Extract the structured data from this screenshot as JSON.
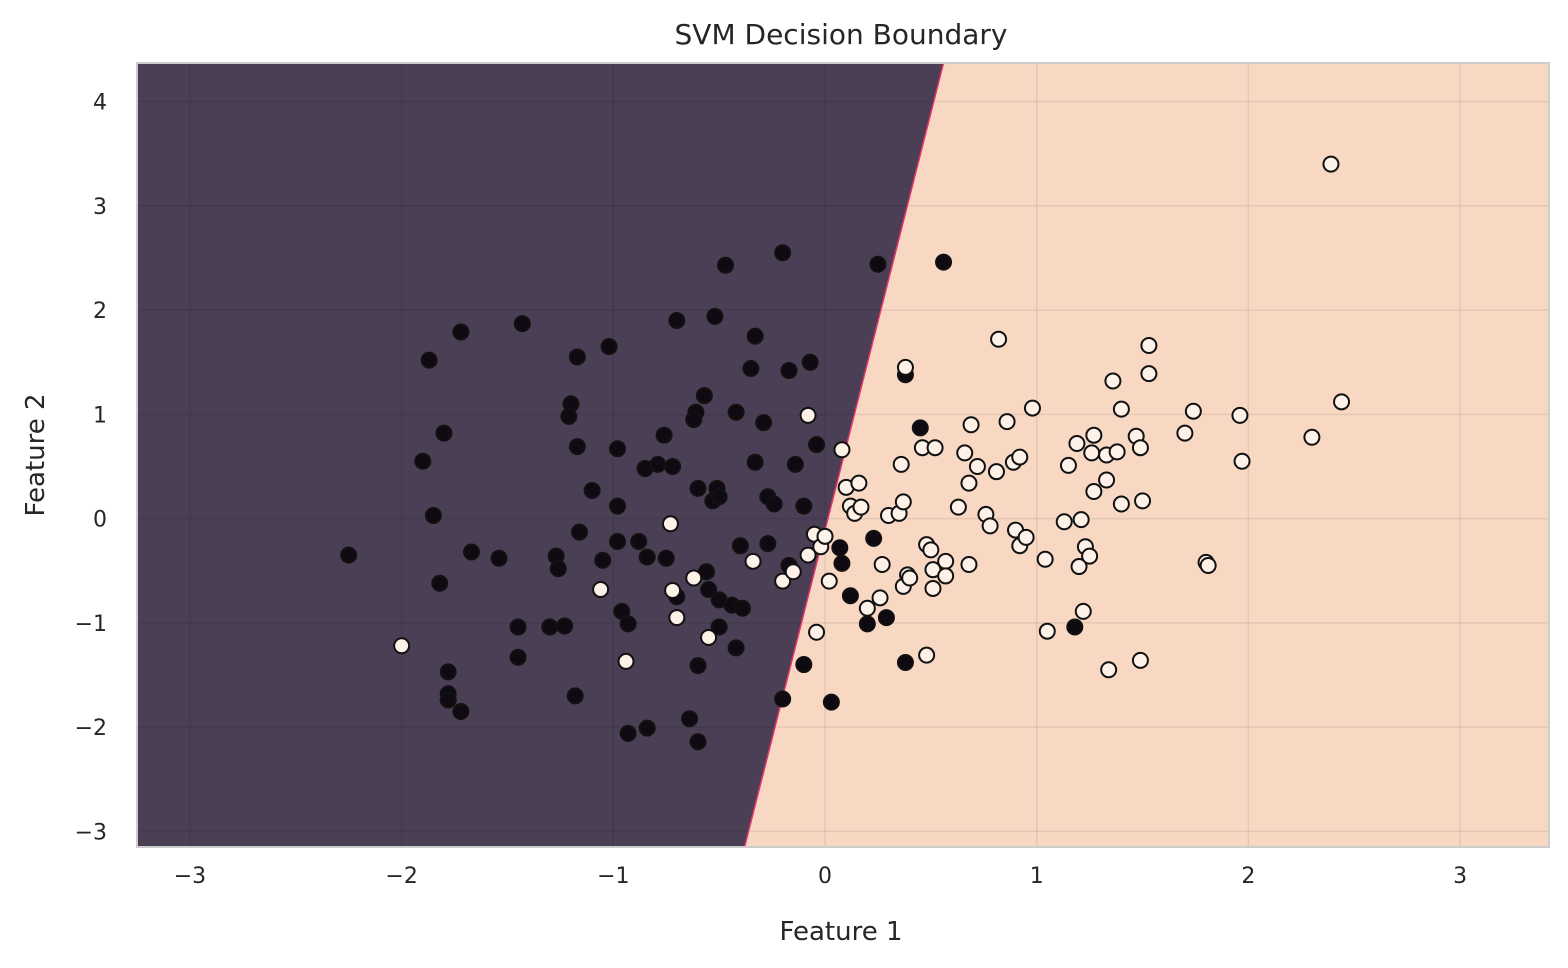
{
  "chart_data": {
    "type": "scatter",
    "title": "SVM Decision Boundary",
    "xlabel": "Feature 1",
    "ylabel": "Feature 2",
    "xlim": [
      -3.25,
      3.42
    ],
    "ylim": [
      -3.15,
      4.37
    ],
    "xticks": [
      -3,
      -2,
      -1,
      0,
      1,
      2,
      3
    ],
    "yticks": [
      -3,
      -2,
      -1,
      0,
      1,
      2,
      3,
      4
    ],
    "xtick_labels": [
      "−3",
      "−2",
      "−1",
      "0",
      "1",
      "2",
      "3"
    ],
    "ytick_labels": [
      "−3",
      "−2",
      "−1",
      "0",
      "1",
      "2",
      "3",
      "4"
    ],
    "grid": true,
    "boundary": {
      "x_at_bottom": -0.38,
      "x_at_top": 0.56
    },
    "region_colors": {
      "class_0": "#4a3f55",
      "class_1": "#f8d8c3",
      "boundary_line": "#e8336a"
    },
    "point_colors": {
      "class_0": "#0f0a12",
      "class_1": "#fdf1e8",
      "edge": "#111111"
    },
    "series": [
      {
        "class": 0,
        "points": [
          [
            -2.25,
            -0.35
          ],
          [
            -1.87,
            1.52
          ],
          [
            -1.8,
            0.82
          ],
          [
            -1.72,
            1.79
          ],
          [
            -1.9,
            0.55
          ],
          [
            -1.85,
            0.03
          ],
          [
            -1.82,
            -0.62
          ],
          [
            -1.67,
            -0.32
          ],
          [
            -1.78,
            -1.47
          ],
          [
            -1.78,
            -1.68
          ],
          [
            -1.78,
            -1.74
          ],
          [
            -1.72,
            -1.85
          ],
          [
            -1.54,
            -0.38
          ],
          [
            -1.43,
            1.87
          ],
          [
            -1.45,
            -1.04
          ],
          [
            -1.45,
            -1.33
          ],
          [
            -1.3,
            -1.04
          ],
          [
            -1.27,
            -0.36
          ],
          [
            -1.26,
            -0.48
          ],
          [
            -1.23,
            -1.03
          ],
          [
            -1.2,
            1.1
          ],
          [
            -1.21,
            0.98
          ],
          [
            -1.17,
            1.55
          ],
          [
            -1.17,
            0.69
          ],
          [
            -1.16,
            -0.13
          ],
          [
            -1.18,
            -1.7
          ],
          [
            -1.1,
            0.27
          ],
          [
            -1.05,
            -0.4
          ],
          [
            -1.02,
            1.65
          ],
          [
            -0.98,
            0.67
          ],
          [
            -0.98,
            0.12
          ],
          [
            -0.98,
            -0.22
          ],
          [
            -0.96,
            -0.89
          ],
          [
            -0.93,
            -1.01
          ],
          [
            -0.93,
            -2.06
          ],
          [
            -0.88,
            -0.22
          ],
          [
            -0.85,
            0.48
          ],
          [
            -0.84,
            -0.37
          ],
          [
            -0.84,
            -2.01
          ],
          [
            -0.79,
            0.52
          ],
          [
            -0.76,
            0.8
          ],
          [
            -0.75,
            -0.38
          ],
          [
            -0.72,
            0.5
          ],
          [
            -0.7,
            1.9
          ],
          [
            -0.7,
            -0.75
          ],
          [
            -0.64,
            -1.92
          ],
          [
            -0.61,
            1.02
          ],
          [
            -0.62,
            0.95
          ],
          [
            -0.6,
            0.29
          ],
          [
            -0.6,
            -1.41
          ],
          [
            -0.6,
            -2.14
          ],
          [
            -0.57,
            1.18
          ],
          [
            -0.56,
            -0.51
          ],
          [
            -0.55,
            -0.68
          ],
          [
            -0.53,
            0.17
          ],
          [
            -0.52,
            1.94
          ],
          [
            -0.51,
            0.29
          ],
          [
            -0.5,
            0.21
          ],
          [
            -0.5,
            -0.78
          ],
          [
            -0.5,
            -1.04
          ],
          [
            -0.47,
            2.43
          ],
          [
            -0.44,
            -0.83
          ],
          [
            -0.42,
            1.02
          ],
          [
            -0.42,
            -1.24
          ],
          [
            -0.4,
            -0.26
          ],
          [
            -0.39,
            -0.86
          ],
          [
            -0.35,
            1.44
          ],
          [
            -0.33,
            1.75
          ],
          [
            -0.33,
            0.54
          ],
          [
            -0.29,
            0.92
          ],
          [
            -0.27,
            0.21
          ],
          [
            -0.27,
            -0.24
          ],
          [
            -0.24,
            0.14
          ],
          [
            -0.2,
            2.55
          ],
          [
            -0.2,
            -1.73
          ],
          [
            -0.17,
            1.42
          ],
          [
            -0.17,
            -0.45
          ],
          [
            -0.14,
            0.52
          ],
          [
            -0.1,
            0.12
          ],
          [
            -0.07,
            1.5
          ],
          [
            -0.04,
            0.71
          ],
          [
            0.07,
            -0.28
          ],
          [
            0.08,
            -0.43
          ],
          [
            0.12,
            -0.74
          ],
          [
            0.2,
            -1.01
          ],
          [
            0.23,
            -0.19
          ],
          [
            0.25,
            2.44
          ],
          [
            0.29,
            -0.95
          ],
          [
            0.38,
            1.38
          ],
          [
            0.38,
            -1.38
          ],
          [
            0.45,
            0.87
          ],
          [
            0.56,
            2.46
          ],
          [
            0.03,
            -1.76
          ],
          [
            -0.1,
            -1.4
          ],
          [
            1.18,
            -1.04
          ]
        ]
      },
      {
        "class": 1,
        "points": [
          [
            -2.0,
            -1.22
          ],
          [
            -1.06,
            -0.68
          ],
          [
            -0.94,
            -1.37
          ],
          [
            -0.73,
            -0.05
          ],
          [
            -0.72,
            -0.69
          ],
          [
            -0.7,
            -0.95
          ],
          [
            -0.62,
            -0.57
          ],
          [
            -0.55,
            -1.14
          ],
          [
            -0.34,
            -0.41
          ],
          [
            -0.2,
            -0.6
          ],
          [
            -0.15,
            -0.51
          ],
          [
            -0.08,
            0.99
          ],
          [
            -0.08,
            -0.35
          ],
          [
            -0.05,
            -0.15
          ],
          [
            -0.04,
            -1.09
          ],
          [
            -0.02,
            -0.27
          ],
          [
            0.0,
            -0.17
          ],
          [
            0.02,
            -0.6
          ],
          [
            0.08,
            0.66
          ],
          [
            0.1,
            0.3
          ],
          [
            0.12,
            0.12
          ],
          [
            0.14,
            0.05
          ],
          [
            0.16,
            0.34
          ],
          [
            0.17,
            0.11
          ],
          [
            0.2,
            -0.86
          ],
          [
            0.26,
            -0.76
          ],
          [
            0.27,
            -0.44
          ],
          [
            0.3,
            0.03
          ],
          [
            0.35,
            0.05
          ],
          [
            0.36,
            0.52
          ],
          [
            0.37,
            0.16
          ],
          [
            0.37,
            -0.65
          ],
          [
            0.38,
            1.45
          ],
          [
            0.39,
            -0.54
          ],
          [
            0.4,
            -0.57
          ],
          [
            0.46,
            0.68
          ],
          [
            0.48,
            -1.31
          ],
          [
            0.48,
            -0.25
          ],
          [
            0.5,
            -0.3
          ],
          [
            0.51,
            -0.49
          ],
          [
            0.51,
            -0.67
          ],
          [
            0.52,
            0.68
          ],
          [
            0.57,
            -0.41
          ],
          [
            0.57,
            -0.55
          ],
          [
            0.63,
            0.11
          ],
          [
            0.66,
            0.63
          ],
          [
            0.68,
            0.34
          ],
          [
            0.68,
            -0.44
          ],
          [
            0.69,
            0.9
          ],
          [
            0.72,
            0.5
          ],
          [
            0.76,
            0.04
          ],
          [
            0.78,
            -0.07
          ],
          [
            0.81,
            0.45
          ],
          [
            0.82,
            1.72
          ],
          [
            0.86,
            0.93
          ],
          [
            0.89,
            0.54
          ],
          [
            0.9,
            -0.11
          ],
          [
            0.92,
            0.59
          ],
          [
            0.92,
            -0.26
          ],
          [
            0.95,
            -0.18
          ],
          [
            0.98,
            1.06
          ],
          [
            1.04,
            -0.39
          ],
          [
            1.05,
            -1.08
          ],
          [
            1.13,
            -0.03
          ],
          [
            1.15,
            0.51
          ],
          [
            1.19,
            0.72
          ],
          [
            1.2,
            -0.46
          ],
          [
            1.21,
            -0.01
          ],
          [
            1.22,
            -0.89
          ],
          [
            1.23,
            -0.27
          ],
          [
            1.25,
            -0.36
          ],
          [
            1.26,
            0.63
          ],
          [
            1.27,
            0.8
          ],
          [
            1.27,
            0.26
          ],
          [
            1.33,
            0.37
          ],
          [
            1.33,
            0.61
          ],
          [
            1.34,
            -1.45
          ],
          [
            1.36,
            1.32
          ],
          [
            1.38,
            0.64
          ],
          [
            1.4,
            1.05
          ],
          [
            1.4,
            0.14
          ],
          [
            1.47,
            0.79
          ],
          [
            1.49,
            0.68
          ],
          [
            1.49,
            -1.36
          ],
          [
            1.5,
            0.17
          ],
          [
            1.53,
            1.66
          ],
          [
            1.53,
            1.39
          ],
          [
            1.7,
            0.82
          ],
          [
            1.74,
            1.03
          ],
          [
            1.8,
            -0.42
          ],
          [
            1.81,
            -0.45
          ],
          [
            1.96,
            0.99
          ],
          [
            1.97,
            0.55
          ],
          [
            2.3,
            0.78
          ],
          [
            2.39,
            3.4
          ],
          [
            2.44,
            1.12
          ]
        ]
      }
    ]
  }
}
